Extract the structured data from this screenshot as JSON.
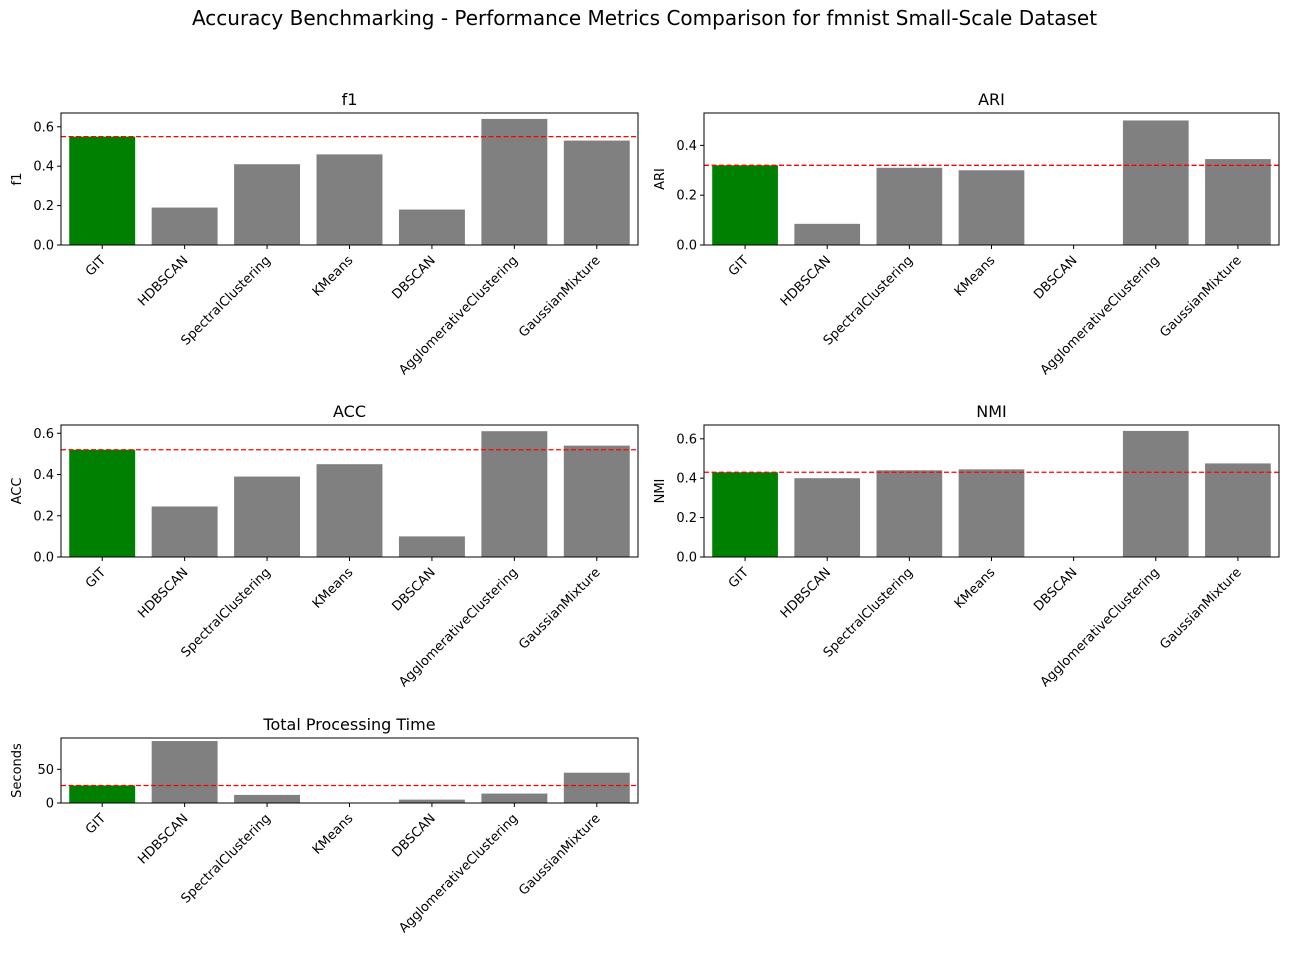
{
  "figure": {
    "title": "Accuracy Benchmarking - Performance Metrics Comparison for fmnist Small-Scale Dataset"
  },
  "colors": {
    "highlight": "#008000",
    "bar": "#808080",
    "reference": "#ff0000"
  },
  "chart_data": [
    {
      "type": "bar",
      "title": "f1",
      "ylabel": "f1",
      "categories": [
        "GIT",
        "HDBSCAN",
        "SpectralClustering",
        "KMeans",
        "DBSCAN",
        "AgglomerativeClustering",
        "GaussianMixture"
      ],
      "values": [
        0.55,
        0.19,
        0.41,
        0.46,
        0.18,
        0.64,
        0.53
      ],
      "reference_line": 0.55,
      "ylim": [
        0,
        0.67
      ],
      "yticks": [
        0.0,
        0.2,
        0.4,
        0.6
      ],
      "ytick_labels": [
        "0.0",
        "0.2",
        "0.4",
        "0.6"
      ]
    },
    {
      "type": "bar",
      "title": "ARI",
      "ylabel": "ARI",
      "categories": [
        "GIT",
        "HDBSCAN",
        "SpectralClustering",
        "KMeans",
        "DBSCAN",
        "AgglomerativeClustering",
        "GaussianMixture"
      ],
      "values": [
        0.32,
        0.085,
        0.31,
        0.3,
        0.0,
        0.5,
        0.345
      ],
      "reference_line": 0.32,
      "ylim": [
        0,
        0.53
      ],
      "yticks": [
        0.0,
        0.2,
        0.4
      ],
      "ytick_labels": [
        "0.0",
        "0.2",
        "0.4"
      ]
    },
    {
      "type": "bar",
      "title": "ACC",
      "ylabel": "ACC",
      "categories": [
        "GIT",
        "HDBSCAN",
        "SpectralClustering",
        "KMeans",
        "DBSCAN",
        "AgglomerativeClustering",
        "GaussianMixture"
      ],
      "values": [
        0.52,
        0.245,
        0.39,
        0.45,
        0.1,
        0.61,
        0.54
      ],
      "reference_line": 0.52,
      "ylim": [
        0,
        0.64
      ],
      "yticks": [
        0.0,
        0.2,
        0.4,
        0.6
      ],
      "ytick_labels": [
        "0.0",
        "0.2",
        "0.4",
        "0.6"
      ]
    },
    {
      "type": "bar",
      "title": "NMI",
      "ylabel": "NMI",
      "categories": [
        "GIT",
        "HDBSCAN",
        "SpectralClustering",
        "KMeans",
        "DBSCAN",
        "AgglomerativeClustering",
        "GaussianMixture"
      ],
      "values": [
        0.43,
        0.4,
        0.44,
        0.445,
        0.0,
        0.64,
        0.475
      ],
      "reference_line": 0.43,
      "ylim": [
        0,
        0.67
      ],
      "yticks": [
        0.0,
        0.2,
        0.4,
        0.6
      ],
      "ytick_labels": [
        "0.0",
        "0.2",
        "0.4",
        "0.6"
      ]
    },
    {
      "type": "bar",
      "title": "Total Processing Time",
      "ylabel": "Seconds",
      "categories": [
        "GIT",
        "HDBSCAN",
        "SpectralClustering",
        "KMeans",
        "DBSCAN",
        "AgglomerativeClustering",
        "GaussianMixture"
      ],
      "values": [
        26,
        92,
        12,
        0.5,
        5,
        14,
        45
      ],
      "reference_line": 26,
      "ylim": [
        0,
        96.5
      ],
      "yticks": [
        0,
        50
      ],
      "ytick_labels": [
        "0",
        "50"
      ]
    }
  ]
}
